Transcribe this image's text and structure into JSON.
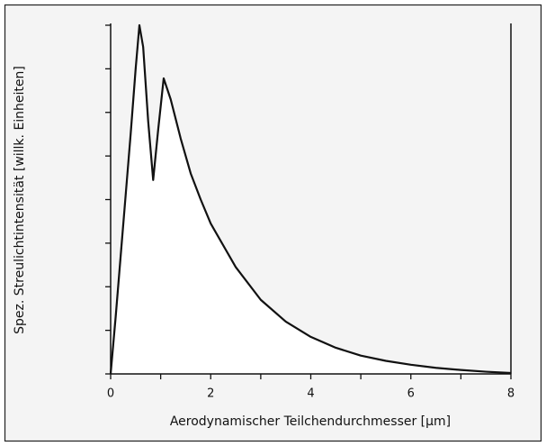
{
  "chart_data": {
    "type": "area",
    "x_label": "Aerodynamischer Teilchendurchmesser [µm]",
    "y_label": "Spez. Streulichtintensität [willk. Einheiten]",
    "x": [
      0,
      0.1,
      0.2,
      0.3,
      0.4,
      0.5,
      0.575,
      0.65,
      0.75,
      0.85,
      0.95,
      1.06,
      1.2,
      1.4,
      1.6,
      1.8,
      2.0,
      2.5,
      3.0,
      3.5,
      4.0,
      4.5,
      5.0,
      5.5,
      6.0,
      6.5,
      7.0,
      7.5,
      8.0
    ],
    "values": [
      0,
      1.3,
      2.7,
      4.1,
      5.5,
      7.0,
      8.0,
      7.5,
      5.8,
      4.45,
      5.6,
      6.78,
      6.3,
      5.4,
      4.6,
      4.0,
      3.45,
      2.45,
      1.7,
      1.2,
      0.85,
      0.6,
      0.42,
      0.3,
      0.21,
      0.14,
      0.09,
      0.05,
      0.02
    ],
    "color": "#111111",
    "xlim": [
      0,
      8
    ],
    "xticks": [
      0,
      2,
      4,
      6,
      8
    ],
    "xminor_ticks": [
      1,
      3,
      5,
      7
    ],
    "ylim": [
      0,
      8
    ],
    "yticks": [
      0,
      1,
      2,
      3,
      4,
      5,
      6,
      7,
      8
    ]
  }
}
